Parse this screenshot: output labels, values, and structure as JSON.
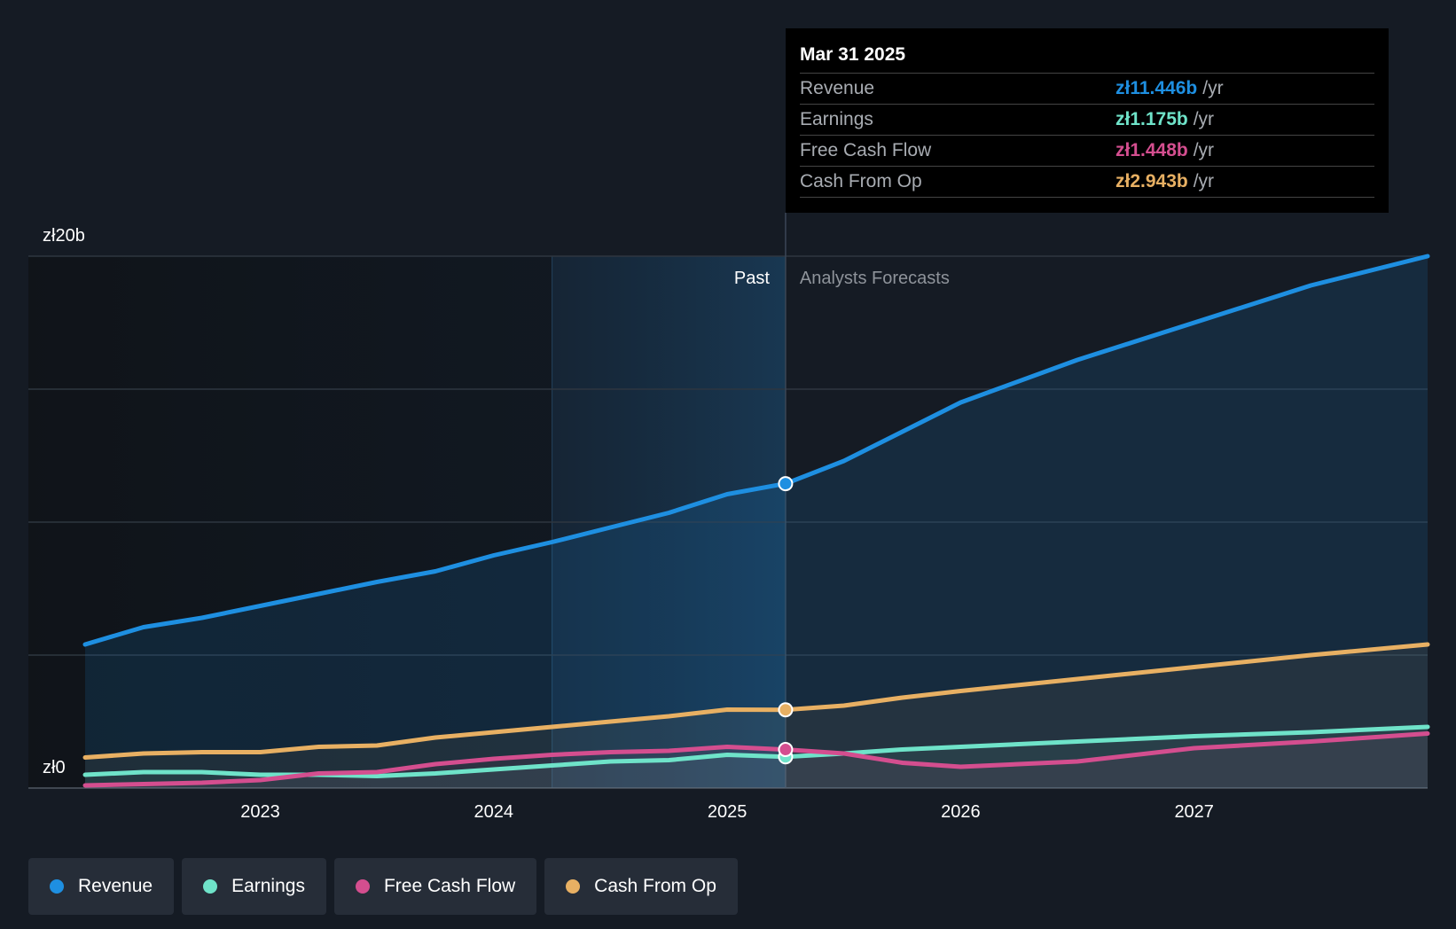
{
  "chart_data": {
    "type": "line",
    "currency": "zł",
    "y_axis": {
      "top_label": "zł20b",
      "bottom_label": "zł0",
      "ylim": [
        0,
        20
      ]
    },
    "x_axis": {
      "ticks": [
        "2023",
        "2024",
        "2025",
        "2026",
        "2027"
      ],
      "xlim": [
        2022.25,
        2028.0
      ]
    },
    "regions": {
      "past_label": "Past",
      "forecast_label": "Analysts Forecasts",
      "split_x": 2025.25,
      "highlight_start_x": 2024.25
    },
    "series": [
      {
        "name": "Revenue",
        "color": "#1e8fe1",
        "points": [
          [
            2022.25,
            5.4
          ],
          [
            2022.5,
            6.05
          ],
          [
            2022.75,
            6.4
          ],
          [
            2023.0,
            6.85
          ],
          [
            2023.25,
            7.3
          ],
          [
            2023.5,
            7.75
          ],
          [
            2023.75,
            8.15
          ],
          [
            2024.0,
            8.75
          ],
          [
            2024.25,
            9.25
          ],
          [
            2024.5,
            9.8
          ],
          [
            2024.75,
            10.35
          ],
          [
            2025.0,
            11.05
          ],
          [
            2025.25,
            11.446
          ],
          [
            2025.5,
            12.3
          ],
          [
            2025.75,
            13.4
          ],
          [
            2026.0,
            14.5
          ],
          [
            2026.5,
            16.1
          ],
          [
            2027.0,
            17.5
          ],
          [
            2027.5,
            18.9
          ],
          [
            2028.0,
            20.0
          ]
        ]
      },
      {
        "name": "Cash From Op",
        "color": "#e8b063",
        "points": [
          [
            2022.25,
            1.15
          ],
          [
            2022.5,
            1.3
          ],
          [
            2022.75,
            1.35
          ],
          [
            2023.0,
            1.35
          ],
          [
            2023.25,
            1.55
          ],
          [
            2023.5,
            1.6
          ],
          [
            2023.75,
            1.9
          ],
          [
            2024.0,
            2.1
          ],
          [
            2024.25,
            2.3
          ],
          [
            2024.5,
            2.5
          ],
          [
            2024.75,
            2.7
          ],
          [
            2025.0,
            2.95
          ],
          [
            2025.25,
            2.943
          ],
          [
            2025.5,
            3.1
          ],
          [
            2025.75,
            3.4
          ],
          [
            2026.0,
            3.65
          ],
          [
            2026.5,
            4.1
          ],
          [
            2027.0,
            4.55
          ],
          [
            2027.5,
            5.0
          ],
          [
            2028.0,
            5.4
          ]
        ]
      },
      {
        "name": "Earnings",
        "color": "#6fe3c9",
        "points": [
          [
            2022.25,
            0.5
          ],
          [
            2022.5,
            0.6
          ],
          [
            2022.75,
            0.6
          ],
          [
            2023.0,
            0.5
          ],
          [
            2023.25,
            0.5
          ],
          [
            2023.5,
            0.45
          ],
          [
            2023.75,
            0.55
          ],
          [
            2024.0,
            0.7
          ],
          [
            2024.25,
            0.85
          ],
          [
            2024.5,
            1.0
          ],
          [
            2024.75,
            1.05
          ],
          [
            2025.0,
            1.25
          ],
          [
            2025.25,
            1.175
          ],
          [
            2025.5,
            1.3
          ],
          [
            2025.75,
            1.45
          ],
          [
            2026.0,
            1.55
          ],
          [
            2026.5,
            1.75
          ],
          [
            2027.0,
            1.95
          ],
          [
            2027.5,
            2.1
          ],
          [
            2028.0,
            2.3
          ]
        ]
      },
      {
        "name": "Free Cash Flow",
        "color": "#d44e8f",
        "points": [
          [
            2022.25,
            0.1
          ],
          [
            2022.5,
            0.15
          ],
          [
            2022.75,
            0.2
          ],
          [
            2023.0,
            0.3
          ],
          [
            2023.25,
            0.55
          ],
          [
            2023.5,
            0.6
          ],
          [
            2023.75,
            0.9
          ],
          [
            2024.0,
            1.1
          ],
          [
            2024.25,
            1.25
          ],
          [
            2024.5,
            1.35
          ],
          [
            2024.75,
            1.4
          ],
          [
            2025.0,
            1.55
          ],
          [
            2025.25,
            1.448
          ],
          [
            2025.5,
            1.3
          ],
          [
            2025.75,
            0.95
          ],
          [
            2026.0,
            0.8
          ],
          [
            2026.5,
            1.0
          ],
          [
            2027.0,
            1.5
          ],
          [
            2027.5,
            1.75
          ],
          [
            2028.0,
            2.05
          ]
        ]
      }
    ]
  },
  "tooltip": {
    "date": "Mar 31 2025",
    "unit": "/yr",
    "rows": [
      {
        "label": "Revenue",
        "value": "zł11.446b",
        "color": "#1e8fe1"
      },
      {
        "label": "Earnings",
        "value": "zł1.175b",
        "color": "#6fe3c9"
      },
      {
        "label": "Free Cash Flow",
        "value": "zł1.448b",
        "color": "#d44e8f"
      },
      {
        "label": "Cash From Op",
        "value": "zł2.943b",
        "color": "#e8b063"
      }
    ]
  },
  "legend": [
    {
      "label": "Revenue",
      "color": "#1e8fe1"
    },
    {
      "label": "Earnings",
      "color": "#6fe3c9"
    },
    {
      "label": "Free Cash Flow",
      "color": "#d44e8f"
    },
    {
      "label": "Cash From Op",
      "color": "#e8b063"
    }
  ]
}
